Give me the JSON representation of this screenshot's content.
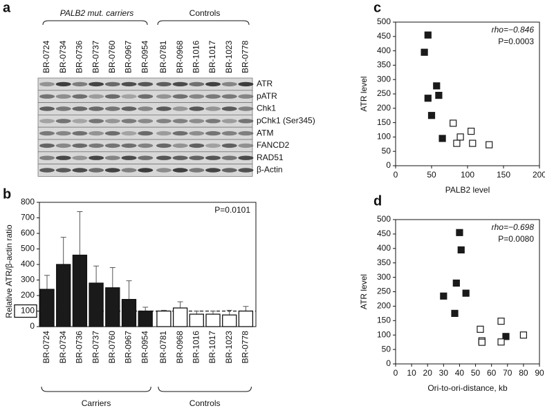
{
  "panel_labels": [
    "a",
    "b",
    "c",
    "d"
  ],
  "blot": {
    "groups": [
      "PALB2 mut. carriers",
      "Controls"
    ],
    "samples": [
      "BR-0724",
      "BR-0734",
      "BR-0736",
      "BR-0737",
      "BR-0760",
      "BR-0967",
      "BR-0954",
      "BR-0781",
      "BR-0968",
      "BR-1016",
      "BR-1017",
      "BR-1023",
      "BR-0778"
    ],
    "proteins": [
      "ATR",
      "pATR",
      "Chk1",
      "pChk1 (Ser345)",
      "ATM",
      "FANCD2",
      "RAD51",
      "β-Actin"
    ]
  },
  "chart_data": [
    {
      "type": "bar",
      "ylabel": "Relative ATR/β-actin ratio",
      "annotation": "P=0.0101",
      "categories": [
        "BR-0724",
        "BR-0734",
        "BR-0736",
        "BR-0737",
        "BR-0760",
        "BR-0967",
        "BR-0954",
        "BR-0781",
        "BR-0968",
        "BR-1016",
        "BR-1017",
        "BR-1023",
        "BR-0778"
      ],
      "series": [
        {
          "name": "Carriers",
          "color": "#1a1a1a",
          "values": [
            240,
            400,
            460,
            280,
            250,
            175,
            100,
            null,
            null,
            null,
            null,
            null,
            null
          ],
          "errors": [
            90,
            175,
            280,
            110,
            130,
            120,
            25,
            null,
            null,
            null,
            null,
            null,
            null
          ]
        },
        {
          "name": "Controls",
          "color": "#ffffff",
          "values": [
            null,
            null,
            null,
            null,
            null,
            null,
            null,
            100,
            120,
            80,
            80,
            75,
            100
          ],
          "errors": [
            null,
            null,
            null,
            null,
            null,
            null,
            null,
            5,
            40,
            20,
            20,
            30,
            30
          ]
        }
      ],
      "reference_line": 100,
      "ylim": [
        0,
        800
      ],
      "yticks": [
        0,
        100,
        200,
        300,
        400,
        500,
        600,
        700,
        800
      ]
    },
    {
      "type": "scatter",
      "xlabel": "PALB2 level",
      "ylabel": "ATR level",
      "annotations": [
        "rho=−0.846",
        "P=0.0003"
      ],
      "series": [
        {
          "color": "#1a1a1a",
          "fill": "#1a1a1a",
          "x": [
            45,
            40,
            57,
            60,
            45,
            50,
            65
          ],
          "values": [
            455,
            395,
            278,
            245,
            235,
            175,
            95
          ]
        },
        {
          "color": "#1a1a1a",
          "fill": "#ffffff",
          "x": [
            80,
            90,
            105,
            85,
            107,
            130
          ],
          "values": [
            148,
            100,
            120,
            78,
            78,
            73
          ]
        }
      ],
      "xlim": [
        0,
        200
      ],
      "xticks": [
        0,
        50,
        100,
        150,
        200
      ],
      "ylim": [
        0,
        500
      ],
      "yticks": [
        0,
        50,
        100,
        150,
        200,
        250,
        300,
        350,
        400,
        450,
        500
      ]
    },
    {
      "type": "scatter",
      "xlabel": "Ori-to-ori-distance, kb",
      "ylabel": "ATR level",
      "annotations": [
        "rho=−0.698",
        "P=0.0080"
      ],
      "series": [
        {
          "color": "#1a1a1a",
          "fill": "#1a1a1a",
          "x": [
            40,
            41,
            38,
            44,
            30,
            37,
            69
          ],
          "values": [
            455,
            395,
            280,
            245,
            235,
            175,
            95
          ]
        },
        {
          "color": "#1a1a1a",
          "fill": "#ffffff",
          "x": [
            53,
            66,
            54,
            54,
            66,
            80
          ],
          "values": [
            120,
            148,
            80,
            75,
            76,
            100
          ]
        }
      ],
      "xlim": [
        0,
        90
      ],
      "xticks": [
        0,
        10,
        20,
        30,
        40,
        50,
        60,
        70,
        80,
        90
      ],
      "ylim": [
        0,
        500
      ],
      "yticks": [
        0,
        50,
        100,
        150,
        200,
        250,
        300,
        350,
        400,
        450,
        500
      ]
    }
  ]
}
